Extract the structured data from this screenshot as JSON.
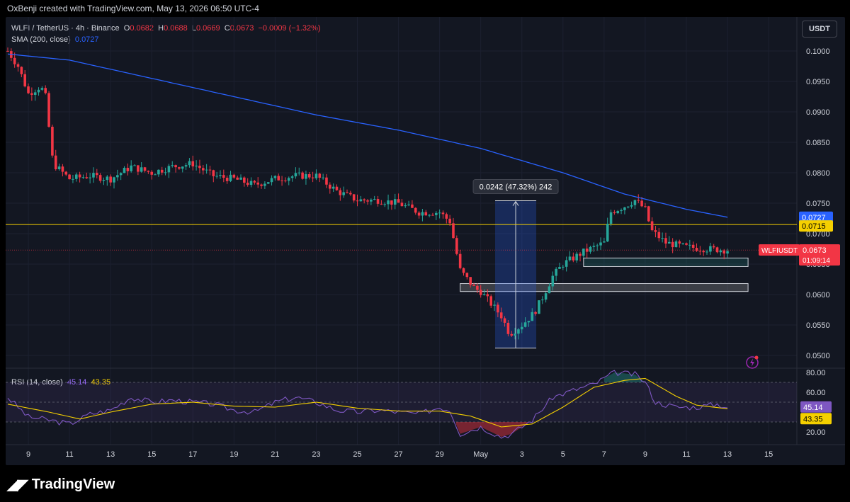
{
  "header": {
    "credit": "OxBenji created with TradingView.com, May 13, 2026 06:50 UTC-4"
  },
  "legend": {
    "symbol": "WLFI / TetherUS · 4h · Binance",
    "open_label": "O",
    "open": "0.0682",
    "high_label": "H",
    "high": "0.0688",
    "low_label": "L",
    "low": "0.0669",
    "close_label": "C",
    "close": "0.0673",
    "change": "−0.0009 (−1.32%)",
    "sma_label": "SMA (200, close)",
    "sma_value": "0.0727",
    "rsi_label": "RSI (14, close)",
    "rsi_value": "45.14",
    "rsi_ma_value": "43.35"
  },
  "currency_button": "USDT",
  "price_tags": {
    "sma": "0.0727",
    "hline": "0.0715",
    "symbol": "WLFIUSDT",
    "last": "0.0673",
    "countdown": "01:09:14",
    "rsi": "45.14",
    "rsi_ma": "43.35"
  },
  "measure_label": "0.0242 (47.32%) 242",
  "brand": "TradingView",
  "colors": {
    "up": "#26a69a",
    "down": "#f23645",
    "sma": "#2962ff",
    "hline": "#f5d000",
    "rsi": "#7e57c2",
    "rsi_ma": "#f5d000",
    "measure_box": "#1e3a6e"
  },
  "chart_data": [
    {
      "type": "line",
      "title": "WLFI / TetherUS · 4h · Binance",
      "x_ticks": [
        "9",
        "11",
        "13",
        "15",
        "17",
        "19",
        "21",
        "23",
        "25",
        "27",
        "29",
        "May",
        "3",
        "5",
        "7",
        "9",
        "11",
        "13",
        "15"
      ],
      "y_ticks": [
        "0.1000",
        "0.0950",
        "0.0900",
        "0.0850",
        "0.0800",
        "0.0750",
        "0.0700",
        "0.0650",
        "0.0600",
        "0.0550",
        "0.0500"
      ],
      "ylim": [
        0.0475,
        0.1035
      ],
      "price_anchors": [
        {
          "day": 8.0,
          "price": 0.1
        },
        {
          "day": 8.5,
          "price": 0.0975
        },
        {
          "day": 9.0,
          "price": 0.093
        },
        {
          "day": 9.5,
          "price": 0.094
        },
        {
          "day": 9.8,
          "price": 0.0935
        },
        {
          "day": 10.2,
          "price": 0.0815
        },
        {
          "day": 11.0,
          "price": 0.079
        },
        {
          "day": 12.0,
          "price": 0.0795
        },
        {
          "day": 13.0,
          "price": 0.079
        },
        {
          "day": 14.0,
          "price": 0.081
        },
        {
          "day": 15.0,
          "price": 0.08
        },
        {
          "day": 16.0,
          "price": 0.081
        },
        {
          "day": 17.0,
          "price": 0.0815
        },
        {
          "day": 18.0,
          "price": 0.0795
        },
        {
          "day": 19.0,
          "price": 0.079
        },
        {
          "day": 20.0,
          "price": 0.078
        },
        {
          "day": 21.0,
          "price": 0.079
        },
        {
          "day": 22.0,
          "price": 0.0795
        },
        {
          "day": 23.0,
          "price": 0.0795
        },
        {
          "day": 24.0,
          "price": 0.077
        },
        {
          "day": 25.0,
          "price": 0.0755
        },
        {
          "day": 26.0,
          "price": 0.0755
        },
        {
          "day": 27.0,
          "price": 0.075
        },
        {
          "day": 28.0,
          "price": 0.0735
        },
        {
          "day": 29.0,
          "price": 0.0735
        },
        {
          "day": 29.5,
          "price": 0.072
        },
        {
          "day": 30.0,
          "price": 0.064
        },
        {
          "day": 30.7,
          "price": 0.061
        },
        {
          "day": 31.0,
          "price": 0.0605
        },
        {
          "day": 32.0,
          "price": 0.0565
        },
        {
          "day": 32.4,
          "price": 0.0535
        },
        {
          "day": 33.0,
          "price": 0.055
        },
        {
          "day": 33.6,
          "price": 0.057
        },
        {
          "day": 34.0,
          "price": 0.0595
        },
        {
          "day": 34.5,
          "price": 0.063
        },
        {
          "day": 35.0,
          "price": 0.065
        },
        {
          "day": 35.5,
          "price": 0.066
        },
        {
          "day": 36.0,
          "price": 0.067
        },
        {
          "day": 37.0,
          "price": 0.0685
        },
        {
          "day": 37.3,
          "price": 0.0735
        },
        {
          "day": 38.0,
          "price": 0.0745
        },
        {
          "day": 38.5,
          "price": 0.0755
        },
        {
          "day": 39.0,
          "price": 0.074
        },
        {
          "day": 39.3,
          "price": 0.0705
        },
        {
          "day": 40.0,
          "price": 0.0685
        },
        {
          "day": 41.0,
          "price": 0.0678
        },
        {
          "day": 42.0,
          "price": 0.0675
        },
        {
          "day": 43.0,
          "price": 0.0673
        }
      ],
      "sma_anchors": [
        {
          "day": 8.0,
          "price": 0.0995
        },
        {
          "day": 11.0,
          "price": 0.0985
        },
        {
          "day": 15.0,
          "price": 0.0955
        },
        {
          "day": 19.0,
          "price": 0.0925
        },
        {
          "day": 23.0,
          "price": 0.0895
        },
        {
          "day": 27.0,
          "price": 0.087
        },
        {
          "day": 31.0,
          "price": 0.084
        },
        {
          "day": 35.0,
          "price": 0.08
        },
        {
          "day": 38.0,
          "price": 0.0765
        },
        {
          "day": 41.0,
          "price": 0.074
        },
        {
          "day": 43.0,
          "price": 0.0727
        }
      ],
      "horizontal_line": 0.0715,
      "last_price_line": 0.0673,
      "zones": [
        {
          "from_day": 36.0,
          "to_day": 44.0,
          "low": 0.0646,
          "high": 0.066
        },
        {
          "from_day": 30.0,
          "to_day": 44.0,
          "low": 0.0605,
          "high": 0.0618
        }
      ],
      "measure": {
        "from_day": 31.7,
        "to_day": 33.7,
        "low": 0.0512,
        "high": 0.0754
      }
    },
    {
      "type": "line",
      "title": "RSI (14, close)",
      "y_ticks": [
        "80.00",
        "60.00",
        "20.00"
      ],
      "ylim": [
        10,
        82
      ],
      "bands": [
        30,
        50,
        70
      ],
      "rsi_anchors": [
        {
          "day": 8.0,
          "value": 55
        },
        {
          "day": 9.0,
          "value": 35
        },
        {
          "day": 10.0,
          "value": 32
        },
        {
          "day": 11.0,
          "value": 28
        },
        {
          "day": 12.0,
          "value": 38
        },
        {
          "day": 13.0,
          "value": 42
        },
        {
          "day": 14.0,
          "value": 55
        },
        {
          "day": 15.0,
          "value": 50
        },
        {
          "day": 16.0,
          "value": 52
        },
        {
          "day": 17.0,
          "value": 50
        },
        {
          "day": 18.0,
          "value": 48
        },
        {
          "day": 19.0,
          "value": 42
        },
        {
          "day": 20.0,
          "value": 40
        },
        {
          "day": 21.0,
          "value": 50
        },
        {
          "day": 22.0,
          "value": 55
        },
        {
          "day": 23.0,
          "value": 50
        },
        {
          "day": 24.0,
          "value": 42
        },
        {
          "day": 25.0,
          "value": 40
        },
        {
          "day": 26.0,
          "value": 42
        },
        {
          "day": 27.0,
          "value": 40
        },
        {
          "day": 28.0,
          "value": 38
        },
        {
          "day": 29.0,
          "value": 45
        },
        {
          "day": 29.5,
          "value": 42
        },
        {
          "day": 30.0,
          "value": 18
        },
        {
          "day": 31.0,
          "value": 25
        },
        {
          "day": 32.0,
          "value": 15
        },
        {
          "day": 32.5,
          "value": 18
        },
        {
          "day": 33.5,
          "value": 32
        },
        {
          "day": 34.5,
          "value": 55
        },
        {
          "day": 35.5,
          "value": 62
        },
        {
          "day": 36.5,
          "value": 68
        },
        {
          "day": 37.5,
          "value": 80
        },
        {
          "day": 38.5,
          "value": 78
        },
        {
          "day": 39.0,
          "value": 70
        },
        {
          "day": 39.5,
          "value": 50
        },
        {
          "day": 40.5,
          "value": 45
        },
        {
          "day": 41.5,
          "value": 45
        },
        {
          "day": 42.5,
          "value": 48
        },
        {
          "day": 43.0,
          "value": 45.14
        }
      ],
      "rsi_ma_anchors": [
        {
          "day": 8.0,
          "value": 48
        },
        {
          "day": 10.0,
          "value": 40
        },
        {
          "day": 11.5,
          "value": 33
        },
        {
          "day": 13.0,
          "value": 40
        },
        {
          "day": 15.0,
          "value": 48
        },
        {
          "day": 17.0,
          "value": 50
        },
        {
          "day": 19.0,
          "value": 46
        },
        {
          "day": 21.0,
          "value": 45
        },
        {
          "day": 23.0,
          "value": 50
        },
        {
          "day": 25.0,
          "value": 44
        },
        {
          "day": 27.0,
          "value": 41
        },
        {
          "day": 29.0,
          "value": 41
        },
        {
          "day": 30.5,
          "value": 36
        },
        {
          "day": 32.0,
          "value": 25
        },
        {
          "day": 33.5,
          "value": 28
        },
        {
          "day": 35.0,
          "value": 45
        },
        {
          "day": 36.5,
          "value": 65
        },
        {
          "day": 38.0,
          "value": 72
        },
        {
          "day": 39.0,
          "value": 74
        },
        {
          "day": 40.5,
          "value": 56
        },
        {
          "day": 41.5,
          "value": 47
        },
        {
          "day": 43.0,
          "value": 43.35
        }
      ]
    }
  ]
}
